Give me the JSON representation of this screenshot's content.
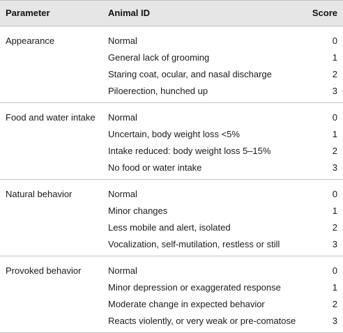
{
  "headers": {
    "parameter": "Parameter",
    "animal_id": "Animal ID",
    "score": "Score"
  },
  "groups": [
    {
      "parameter": "Appearance",
      "rows": [
        {
          "description": "Normal",
          "score": "0"
        },
        {
          "description": "General lack of grooming",
          "score": "1"
        },
        {
          "description": "Staring coat, ocular, and nasal discharge",
          "score": "2"
        },
        {
          "description": "Piloerection, hunched up",
          "score": "3"
        }
      ]
    },
    {
      "parameter": "Food and water intake",
      "rows": [
        {
          "description": "Normal",
          "score": "0"
        },
        {
          "description": "Uncertain, body weight loss <5%",
          "score": "1"
        },
        {
          "description": "Intake reduced: body weight loss 5–15%",
          "score": "2"
        },
        {
          "description": "No food or water intake",
          "score": "3"
        }
      ]
    },
    {
      "parameter": "Natural behavior",
      "rows": [
        {
          "description": "Normal",
          "score": "0"
        },
        {
          "description": "Minor changes",
          "score": "1"
        },
        {
          "description": "Less mobile and alert, isolated",
          "score": "2"
        },
        {
          "description": "Vocalization, self-mutilation, restless or still",
          "score": "3"
        }
      ]
    },
    {
      "parameter": "Provoked behavior",
      "rows": [
        {
          "description": "Normal",
          "score": "0"
        },
        {
          "description": "Minor depression or exaggerated response",
          "score": "1"
        },
        {
          "description": "Moderate change in expected behavior",
          "score": "2"
        },
        {
          "description": "Reacts violently, or very weak or pre-comatose",
          "score": "3"
        }
      ]
    }
  ]
}
